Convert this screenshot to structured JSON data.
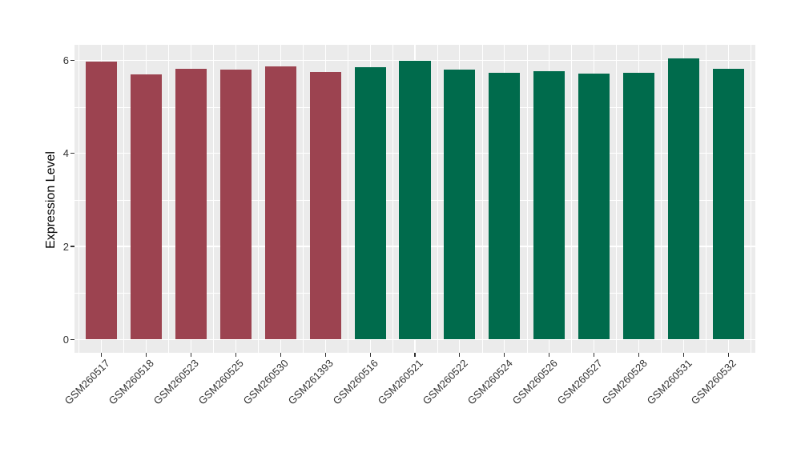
{
  "chart_data": {
    "type": "bar",
    "title": "",
    "xlabel": "",
    "ylabel": "Expression Level",
    "categories": [
      "GSM260517",
      "GSM260518",
      "GSM260523",
      "GSM260525",
      "GSM260530",
      "GSM261393",
      "GSM260516",
      "GSM260521",
      "GSM260522",
      "GSM260524",
      "GSM260526",
      "GSM260527",
      "GSM260528",
      "GSM260531",
      "GSM260532"
    ],
    "values": [
      5.98,
      5.71,
      5.83,
      5.81,
      5.88,
      5.76,
      5.86,
      5.99,
      5.81,
      5.73,
      5.77,
      5.72,
      5.73,
      6.04,
      5.83
    ],
    "series": [
      {
        "name": "red-group",
        "color": "#9C4350",
        "count": 6
      },
      {
        "name": "green-group",
        "color": "#006B4C",
        "count": 9
      }
    ],
    "bar_group_index": [
      0,
      0,
      0,
      0,
      0,
      0,
      1,
      1,
      1,
      1,
      1,
      1,
      1,
      1,
      1
    ],
    "yticks": [
      0,
      2,
      4,
      6
    ],
    "ytick_labels": [
      "0",
      "2",
      "4",
      "6"
    ],
    "yticks_minor": [
      1,
      3,
      5
    ],
    "ylim": [
      -0.29,
      6.34
    ],
    "x_label_rotation": -45,
    "grid": "major+minor",
    "legend_position": "none",
    "panel_bg": "#EBEBEB",
    "grid_color": "#FFFFFF",
    "axis_text_color": "#333333"
  }
}
